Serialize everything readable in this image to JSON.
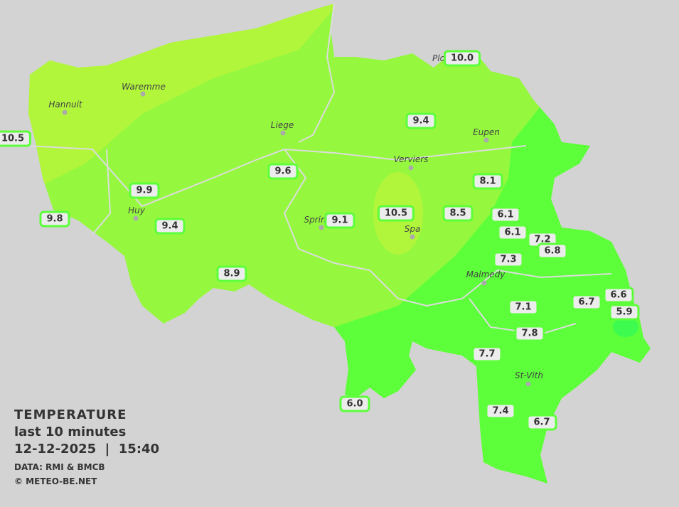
{
  "legend": {
    "title": "TEMPERATURE",
    "period": "last 10 minutes",
    "datetime": "12-12-2025  |  15:40",
    "source": "DATA: RMI & BMCB",
    "copyright": "© METEO-BE.NET"
  },
  "colors": {
    "background": "#d3d3d3",
    "warm_10": "#b2f63c",
    "mid_9": "#95f83e",
    "cool_7": "#5cff3a",
    "cold_6": "#3dfc4f",
    "label_bg": "#ececec",
    "label_border": "#5cff3a"
  },
  "towns": [
    {
      "name": "Hannuit"
    },
    {
      "name": "Waremme"
    },
    {
      "name": "Liege"
    },
    {
      "name": "Verviers"
    },
    {
      "name": "Eupen"
    },
    {
      "name": "Huy"
    },
    {
      "name": "Sprin"
    },
    {
      "name": "Spa"
    },
    {
      "name": "Malmedy"
    },
    {
      "name": "St-Vith"
    },
    {
      "name": "Plo"
    }
  ],
  "stations": [
    "10.0",
    "9.4",
    "10.5",
    "9.6",
    "8.1",
    "9.9",
    "9.8",
    "9.4",
    "9.1",
    "10.5",
    "8.5",
    "6.1",
    "6.1",
    "7.2",
    "6.8",
    "7.3",
    "8.9",
    "6.6",
    "6.7",
    "5.9",
    "7.1",
    "7.8",
    "7.7",
    "6.0",
    "7.4",
    "6.7"
  ]
}
